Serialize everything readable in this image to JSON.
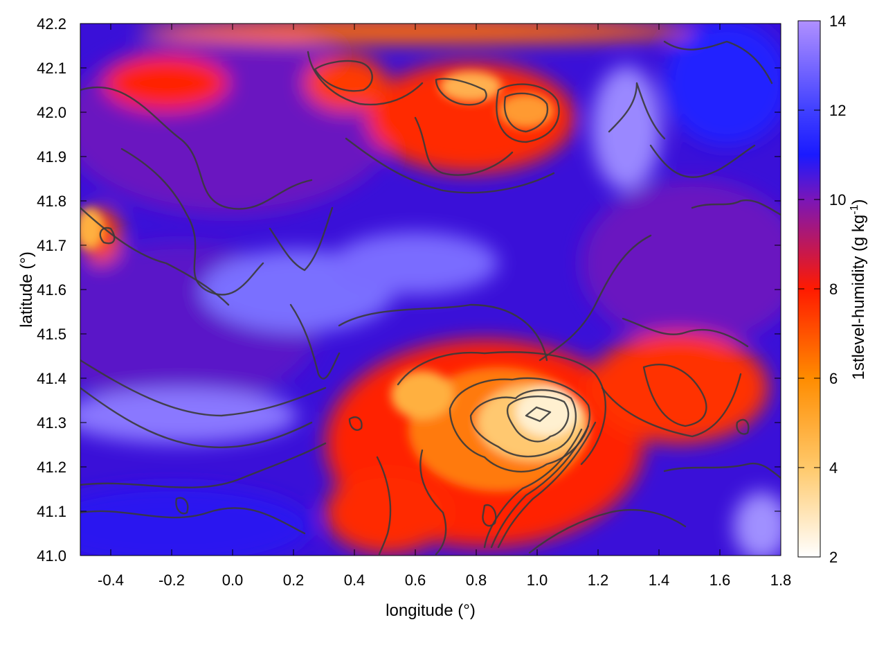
{
  "chart_data": {
    "type": "heatmap",
    "title": "",
    "xlabel": "longitude (°)",
    "ylabel": "latitude (°)",
    "colorbar_label": "1stlevel-humidity (g kg",
    "colorbar_label_sup": "-1",
    "colorbar_label_close": ")",
    "xlim": [
      -0.5,
      1.8
    ],
    "ylim": [
      41.0,
      42.2
    ],
    "clim": [
      2,
      14
    ],
    "x_ticks": [
      -0.4,
      -0.2,
      0.0,
      0.2,
      0.4,
      0.6,
      0.8,
      1.0,
      1.2,
      1.4,
      1.6,
      1.8
    ],
    "x_tick_labels": [
      "-0.4",
      "-0.2",
      "0.0",
      "0.2",
      "0.4",
      "0.6",
      "0.8",
      "1.0",
      "1.2",
      "1.4",
      "1.6",
      "1.8"
    ],
    "y_ticks": [
      41.0,
      41.1,
      41.2,
      41.3,
      41.4,
      41.5,
      41.6,
      41.7,
      41.8,
      41.9,
      42.0,
      42.1,
      42.2
    ],
    "y_tick_labels": [
      "41.0",
      "41.1",
      "41.2",
      "41.3",
      "41.4",
      "41.5",
      "41.6",
      "41.7",
      "41.8",
      "41.9",
      "42.0",
      "42.1",
      "42.2"
    ],
    "colorbar_ticks": [
      2,
      4,
      6,
      8,
      10,
      12,
      14
    ],
    "colorbar_tick_labels": [
      "2",
      "4",
      "6",
      "8",
      "10",
      "12",
      "14"
    ],
    "colormap": [
      {
        "value": 2,
        "color": "#ffffff"
      },
      {
        "value": 4,
        "color": "#ffc96b"
      },
      {
        "value": 6,
        "color": "#ff8c00"
      },
      {
        "value": 8,
        "color": "#ff1a00"
      },
      {
        "value": 10,
        "color": "#7a16b8"
      },
      {
        "value": 11,
        "color": "#1a1aff"
      },
      {
        "value": 12,
        "color": "#4040ff"
      },
      {
        "value": 14,
        "color": "#b090ff"
      }
    ],
    "field_features": [
      {
        "label": "dry core south",
        "lon": 0.92,
        "lat": 41.3,
        "value": 3.0
      },
      {
        "label": "dry south-west lobe",
        "lon": 0.62,
        "lat": 41.33,
        "value": 5.0
      },
      {
        "label": "dry south belt",
        "lon": 0.8,
        "lat": 41.15,
        "value": 7.0
      },
      {
        "label": "dry south-east",
        "lon": 1.5,
        "lat": 41.42,
        "value": 8.0
      },
      {
        "label": "dry north",
        "lon": 0.9,
        "lat": 42.05,
        "value": 7.0
      },
      {
        "label": "dry north-west",
        "lon": 0.65,
        "lat": 41.95,
        "value": 7.5
      },
      {
        "label": "dry west spot",
        "lon": -0.48,
        "lat": 41.72,
        "value": 5.0
      },
      {
        "label": "moist band west",
        "lon": -0.1,
        "lat": 41.3,
        "value": 12.5
      },
      {
        "label": "moist band centre",
        "lon": 0.55,
        "lat": 41.65,
        "value": 12.5
      },
      {
        "label": "moist north-east",
        "lon": 1.3,
        "lat": 41.95,
        "value": 13.0
      },
      {
        "label": "moist south-east corner",
        "lon": 1.75,
        "lat": 41.05,
        "value": 13.0
      }
    ]
  }
}
